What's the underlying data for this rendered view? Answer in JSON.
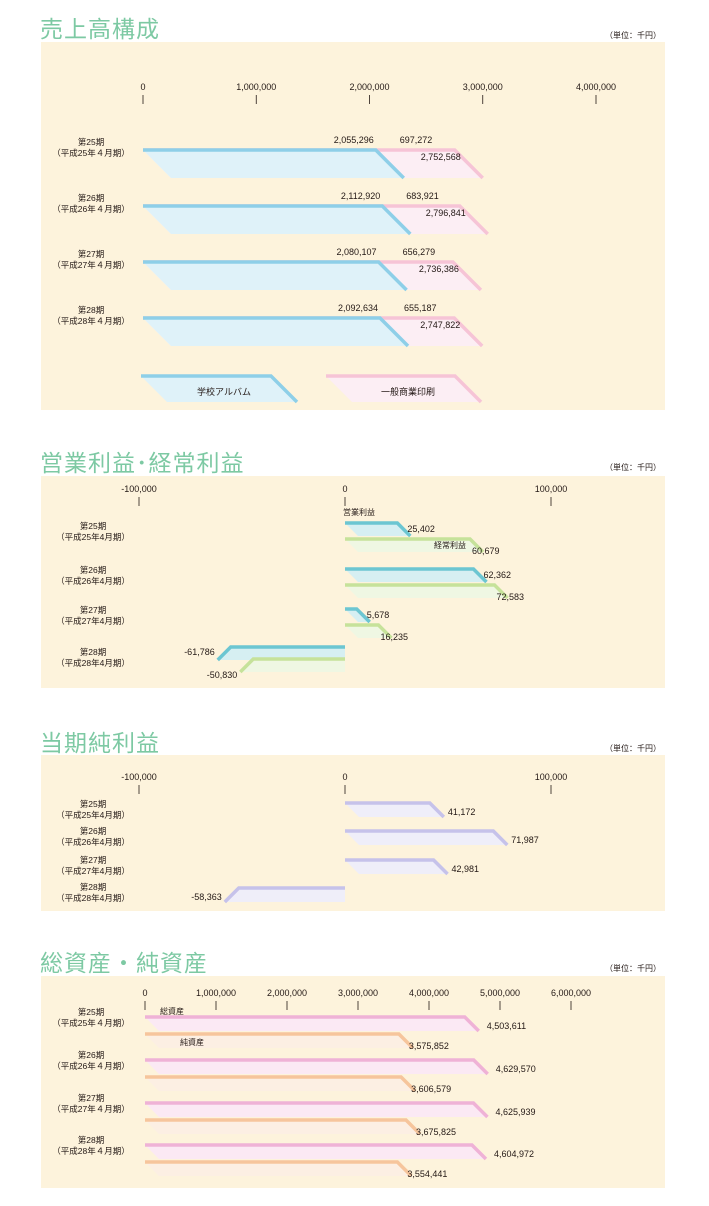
{
  "colors": {
    "title": "#7dc9a3",
    "panel_bg": "#fdf3dc",
    "album": "#8ecfe8",
    "general": "#f6c4d6",
    "operating": "#6cc6d2",
    "ordinary": "#c6e29a",
    "net": "#c6c2ea",
    "assets": "#efb2d6",
    "net_assets": "#f6c59c"
  },
  "charts": [
    {
      "title": "売上高構成",
      "unit": "（単位：千円）",
      "legend": [
        "学校アルバム",
        "一般商業印刷"
      ]
    },
    {
      "title": "営業利益･経常利益",
      "unit": "（単位：千円）",
      "labels": [
        "営業利益",
        "経常利益"
      ]
    },
    {
      "title": "当期純利益",
      "unit": "（単位：千円）"
    },
    {
      "title": "総資産・純資産",
      "unit": "（単位：千円）",
      "labels": [
        "総資産",
        "純資産"
      ]
    }
  ],
  "chart_data": [
    {
      "type": "bar",
      "stacked": true,
      "title": "売上高構成",
      "categories": [
        "第25期（平成25年４月期）",
        "第26期（平成26年４月期）",
        "第27期（平成27年４月期）",
        "第28期（平成28年４月期）"
      ],
      "xticks": [
        "0",
        "1,000,000",
        "2,000,000",
        "3,000,000",
        "4,000,000"
      ],
      "xlim": [
        0,
        4000000
      ],
      "series": [
        {
          "name": "学校アルバム",
          "values": [
            2055296,
            2112920,
            2080107,
            2092634
          ],
          "labels": [
            "2,055,296",
            "2,112,920",
            "2,080,107",
            "2,092,634"
          ]
        },
        {
          "name": "一般商業印刷",
          "values": [
            697272,
            683921,
            656279,
            655187
          ],
          "labels": [
            "697,272",
            "683,921",
            "656,279",
            "655,187"
          ]
        }
      ],
      "totals": [
        2752568,
        2796841,
        2736386,
        2747822
      ],
      "total_labels": [
        "2,752,568",
        "2,796,841",
        "2,736,386",
        "2,747,822"
      ],
      "legend": "bottom"
    },
    {
      "type": "bar",
      "title": "営業利益･経常利益",
      "categories": [
        "第25期（平成25年4月期）",
        "第26期（平成26年4月期）",
        "第27期（平成27年4月期）",
        "第28期（平成28年4月期）"
      ],
      "xticks": [
        "-100,000",
        "0",
        "100,000"
      ],
      "xlim": [
        -100000,
        100000
      ],
      "series": [
        {
          "name": "営業利益",
          "values": [
            25402,
            62362,
            5678,
            -61786
          ],
          "labels": [
            "25,402",
            "62,362",
            "5,678",
            "-61,786"
          ]
        },
        {
          "name": "経常利益",
          "values": [
            60679,
            72583,
            16235,
            -50830
          ],
          "labels": [
            "60,679",
            "72,583",
            "16,235",
            "-50,830"
          ]
        }
      ]
    },
    {
      "type": "bar",
      "title": "当期純利益",
      "categories": [
        "第25期（平成25年4月期）",
        "第26期（平成26年4月期）",
        "第27期（平成27年4月期）",
        "第28期（平成28年4月期）"
      ],
      "xticks": [
        "-100,000",
        "0",
        "100,000"
      ],
      "xlim": [
        -100000,
        100000
      ],
      "series": [
        {
          "values": [
            41172,
            71987,
            42981,
            -58363
          ],
          "labels": [
            "41,172",
            "71,987",
            "42,981",
            "-58,363"
          ]
        }
      ]
    },
    {
      "type": "bar",
      "title": "総資産・純資産",
      "categories": [
        "第25期（平成25年４月期）",
        "第26期（平成26年４月期）",
        "第27期（平成27年４月期）",
        "第28期（平成28年４月期）"
      ],
      "xticks": [
        "0",
        "1,000,000",
        "2,000,000",
        "3,000,000",
        "4,000,000",
        "5,000,000",
        "6,000,000"
      ],
      "xlim": [
        0,
        6000000
      ],
      "series": [
        {
          "name": "総資産",
          "values": [
            4503611,
            4629570,
            4625939,
            4604972
          ],
          "labels": [
            "4,503,611",
            "4,629,570",
            "4,625,939",
            "4,604,972"
          ]
        },
        {
          "name": "純資産",
          "values": [
            3575852,
            3606579,
            3675825,
            3554441
          ],
          "labels": [
            "3,575,852",
            "3,606,579",
            "3,675,825",
            "3,554,441"
          ]
        }
      ]
    }
  ]
}
